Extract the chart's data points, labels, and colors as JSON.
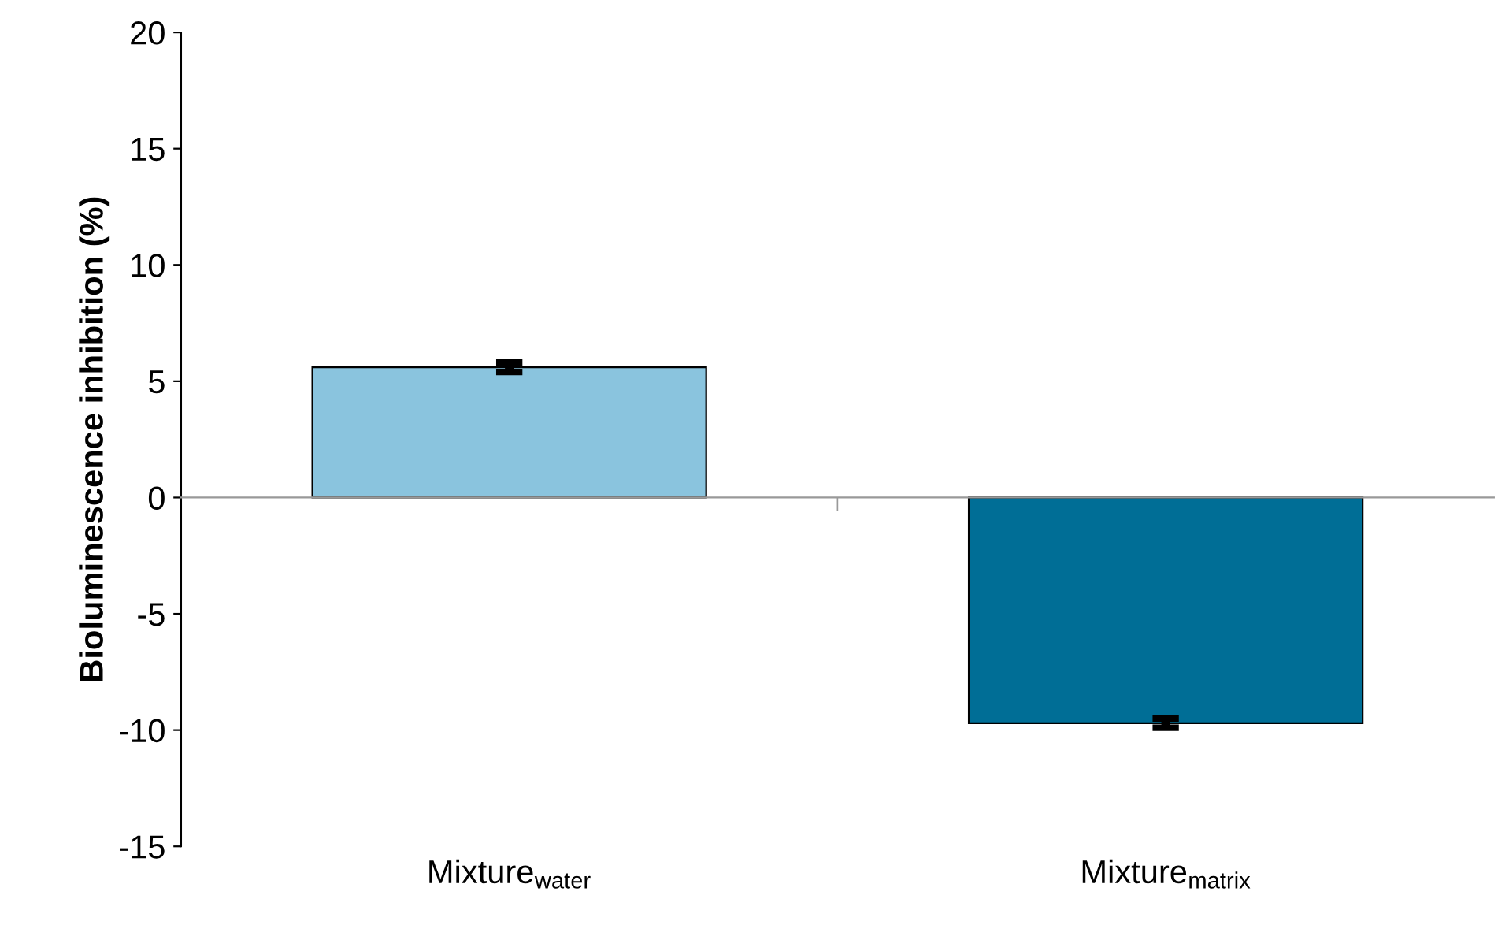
{
  "chart_data": {
    "type": "bar",
    "ylabel": "Bioluminescence inhibition (%)",
    "categories": [
      "Mixture$_{water}$",
      "Mixture$_{matrix}$"
    ],
    "values": [
      5.6,
      -9.7
    ],
    "colors": [
      "#8ac4de",
      "#006e96"
    ],
    "errors": [
      0.2,
      0.2
    ],
    "ylim": [
      -15,
      20
    ],
    "yticks": [
      -15,
      -10,
      -5,
      0,
      5,
      10,
      15,
      20
    ],
    "legend": false
  }
}
